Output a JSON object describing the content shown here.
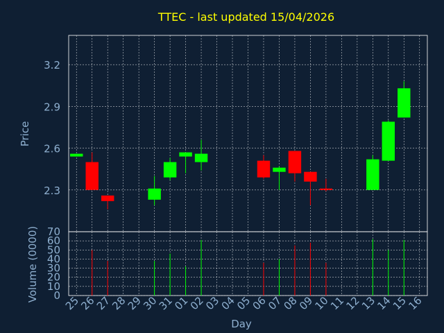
{
  "colors": {
    "background": "#0f1f33",
    "title": "#ffff00",
    "axis_text": "#8fb0d0",
    "grid": "#ffffff",
    "up": "#00ff00",
    "down": "#ff0000"
  },
  "chart_data": [
    {
      "type": "candlestick",
      "title": "TTEC - last updated 15/04/2026",
      "xlabel": "Day",
      "ylabel": "Price",
      "ylim": [
        2.0,
        3.41
      ],
      "yticks": [
        2.3,
        2.6,
        2.9,
        3.2
      ],
      "ytick_labels": [
        "2.3",
        "2.6",
        "2.9",
        "3.2"
      ],
      "grid": true,
      "x": [
        "25",
        "26",
        "27",
        "28",
        "29",
        "30",
        "31",
        "01",
        "02",
        "03",
        "04",
        "05",
        "06",
        "07",
        "08",
        "09",
        "10",
        "11",
        "12",
        "13",
        "14",
        "15",
        "16"
      ],
      "candles": [
        {
          "x": "25",
          "open": 2.54,
          "close": 2.56,
          "high": 2.56,
          "low": 2.54
        },
        {
          "x": "26",
          "open": 2.5,
          "close": 2.3,
          "high": 2.57,
          "low": 2.3
        },
        {
          "x": "27",
          "open": 2.26,
          "close": 2.22,
          "high": 2.26,
          "low": 2.16
        },
        {
          "x": "30",
          "open": 2.23,
          "close": 2.31,
          "high": 2.4,
          "low": 2.19
        },
        {
          "x": "31",
          "open": 2.39,
          "close": 2.5,
          "high": 2.53,
          "low": 2.37
        },
        {
          "x": "01",
          "open": 2.54,
          "close": 2.57,
          "high": 2.57,
          "low": 2.42
        },
        {
          "x": "02",
          "open": 2.5,
          "close": 2.56,
          "high": 2.66,
          "low": 2.44
        },
        {
          "x": "06",
          "open": 2.51,
          "close": 2.39,
          "high": 2.55,
          "low": 2.38
        },
        {
          "x": "07",
          "open": 2.43,
          "close": 2.46,
          "high": 2.47,
          "low": 2.3
        },
        {
          "x": "08",
          "open": 2.58,
          "close": 2.42,
          "high": 2.58,
          "low": 2.36
        },
        {
          "x": "09",
          "open": 2.43,
          "close": 2.36,
          "high": 2.43,
          "low": 2.19
        },
        {
          "x": "10",
          "open": 2.31,
          "close": 2.3,
          "high": 2.38,
          "low": 2.29
        },
        {
          "x": "13",
          "open": 2.3,
          "close": 2.52,
          "high": 2.55,
          "low": 2.3
        },
        {
          "x": "14",
          "open": 2.51,
          "close": 2.79,
          "high": 2.8,
          "low": 2.51
        },
        {
          "x": "15",
          "open": 2.82,
          "close": 3.03,
          "high": 3.08,
          "low": 2.82
        }
      ]
    },
    {
      "type": "bar",
      "xlabel": "Day",
      "ylabel": "Volume (0000)",
      "ylim": [
        0,
        70
      ],
      "yticks": [
        0,
        10,
        20,
        30,
        40,
        50,
        60,
        70
      ],
      "ytick_labels": [
        "0",
        "10",
        "20",
        "30",
        "40",
        "50",
        "60",
        "70"
      ],
      "categories": [
        "25",
        "26",
        "27",
        "30",
        "31",
        "01",
        "02",
        "06",
        "07",
        "08",
        "09",
        "10",
        "13",
        "14",
        "15"
      ],
      "values": [
        0,
        50,
        38,
        38,
        46,
        32,
        61,
        36,
        40,
        55,
        58,
        36,
        62,
        50,
        61
      ],
      "directions": [
        "up",
        "down",
        "down",
        "up",
        "up",
        "up",
        "up",
        "down",
        "up",
        "down",
        "down",
        "down",
        "up",
        "up",
        "up"
      ]
    }
  ]
}
